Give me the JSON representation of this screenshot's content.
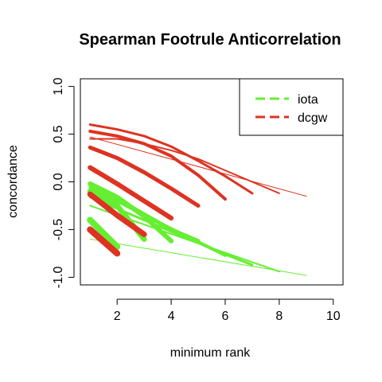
{
  "chart_data": {
    "type": "line",
    "title": "Spearman Footrule Anticorrelation",
    "xlabel": "minimum rank",
    "ylabel": "concordance",
    "xlim": [
      1,
      10
    ],
    "ylim": [
      -1.0,
      1.0
    ],
    "xticks": [
      2,
      4,
      6,
      8,
      10
    ],
    "xtick_labels": [
      "2",
      "4",
      "6",
      "8",
      "10"
    ],
    "yticks": [
      -1.0,
      -0.5,
      0.0,
      0.5,
      1.0
    ],
    "ytick_labels": [
      "-1.0",
      "-0.5",
      "0.0",
      "0.5",
      "1.0"
    ],
    "legend_position": "top-right",
    "legend": [
      {
        "name": "iota",
        "color": "#66ee33"
      },
      {
        "name": "dcgw",
        "color": "#dd3322"
      }
    ],
    "series": [
      {
        "group": "iota",
        "color": "#66ee33",
        "width": 1,
        "x": [
          1,
          9
        ],
        "y": [
          -0.6,
          -0.98
        ]
      },
      {
        "group": "iota",
        "color": "#66ee33",
        "width": 2,
        "x": [
          1,
          8
        ],
        "y": [
          -0.25,
          -0.94
        ]
      },
      {
        "group": "iota",
        "color": "#66ee33",
        "width": 3,
        "x": [
          1,
          2,
          3,
          4,
          5,
          6,
          7
        ],
        "y": [
          -0.16,
          -0.28,
          -0.4,
          -0.52,
          -0.64,
          -0.76,
          -0.87
        ]
      },
      {
        "group": "iota",
        "color": "#66ee33",
        "width": 4,
        "x": [
          1,
          2,
          3,
          4,
          5,
          6
        ],
        "y": [
          -0.06,
          -0.2,
          -0.35,
          -0.49,
          -0.63,
          -0.77
        ]
      },
      {
        "group": "iota",
        "color": "#66ee33",
        "width": 5,
        "x": [
          1,
          2,
          3,
          4,
          5
        ],
        "y": [
          -0.03,
          -0.18,
          -0.34,
          -0.5,
          -0.62
        ]
      },
      {
        "group": "iota",
        "color": "#66ee33",
        "width": 6,
        "x": [
          1,
          2,
          3,
          4
        ],
        "y": [
          -0.02,
          -0.16,
          -0.36,
          -0.62
        ]
      },
      {
        "group": "iota",
        "color": "#66ee33",
        "width": 7,
        "x": [
          1,
          2,
          3
        ],
        "y": [
          -0.1,
          -0.25,
          -0.6
        ]
      },
      {
        "group": "iota",
        "color": "#66ee33",
        "width": 8,
        "x": [
          1,
          2
        ],
        "y": [
          -0.4,
          -0.68
        ]
      },
      {
        "group": "dcgw",
        "color": "#dd3322",
        "width": 1,
        "x": [
          1,
          9
        ],
        "y": [
          0.47,
          -0.15
        ]
      },
      {
        "group": "dcgw",
        "color": "#dd3322",
        "width": 2,
        "x": [
          1,
          2,
          3,
          4,
          5,
          6,
          7,
          8
        ],
        "y": [
          0.45,
          0.45,
          0.4,
          0.33,
          0.24,
          0.12,
          0.0,
          -0.12
        ]
      },
      {
        "group": "dcgw",
        "color": "#dd3322",
        "width": 3,
        "x": [
          1,
          2,
          3,
          4,
          5,
          6,
          7
        ],
        "y": [
          0.6,
          0.55,
          0.48,
          0.37,
          0.22,
          0.06,
          -0.12
        ]
      },
      {
        "group": "dcgw",
        "color": "#dd3322",
        "width": 4,
        "x": [
          1,
          2,
          3,
          4,
          5,
          6
        ],
        "y": [
          0.53,
          0.48,
          0.4,
          0.27,
          0.07,
          -0.18
        ]
      },
      {
        "group": "dcgw",
        "color": "#dd3322",
        "width": 5,
        "x": [
          1,
          2,
          3,
          4,
          5
        ],
        "y": [
          0.36,
          0.25,
          0.1,
          -0.07,
          -0.25
        ]
      },
      {
        "group": "dcgw",
        "color": "#dd3322",
        "width": 6,
        "x": [
          1,
          2,
          3,
          4
        ],
        "y": [
          0.15,
          -0.02,
          -0.2,
          -0.38
        ]
      },
      {
        "group": "dcgw",
        "color": "#dd3322",
        "width": 7,
        "x": [
          1,
          2,
          3
        ],
        "y": [
          -0.13,
          -0.35,
          -0.55
        ]
      },
      {
        "group": "dcgw",
        "color": "#dd3322",
        "width": 8,
        "x": [
          1,
          2
        ],
        "y": [
          -0.5,
          -0.75
        ]
      }
    ]
  }
}
